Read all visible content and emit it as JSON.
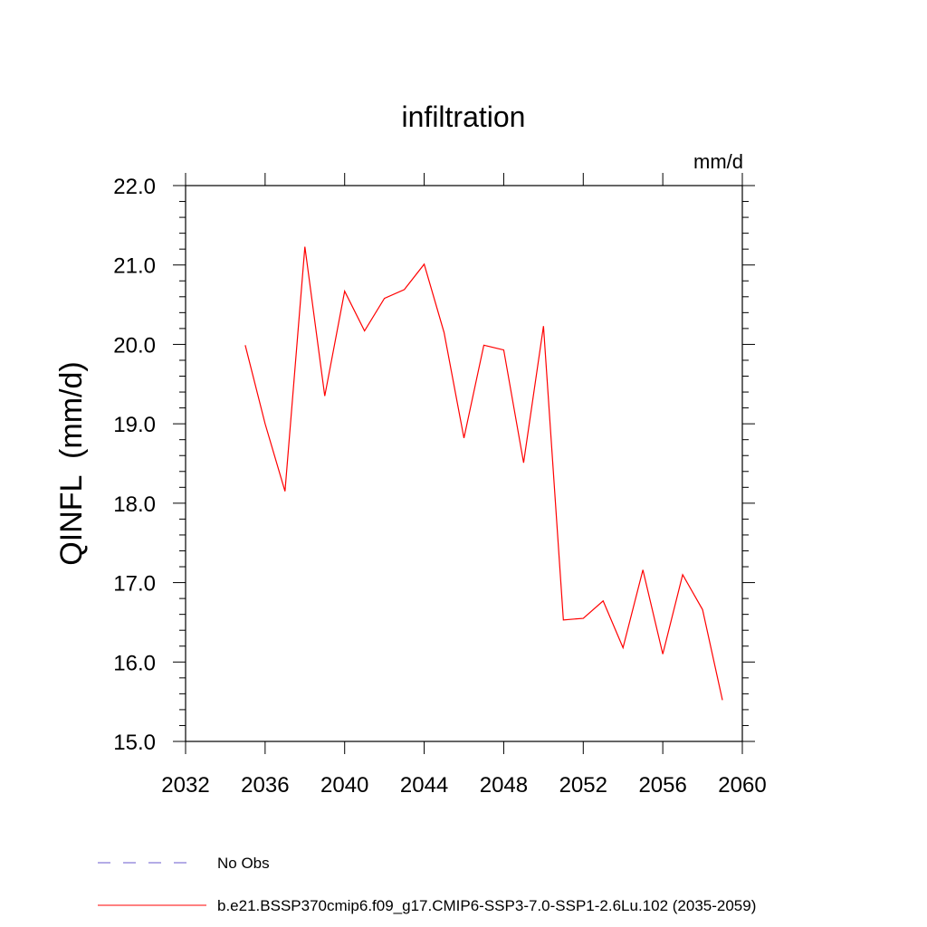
{
  "chart_data": {
    "type": "line",
    "title": "infiltration",
    "units_label": "mm/d",
    "ylabel": "QINFL  (mm/d)",
    "xlabel": "",
    "xlim": [
      2032,
      2060
    ],
    "ylim": [
      15.0,
      22.0
    ],
    "x_ticks": [
      "2032",
      "2036",
      "2040",
      "2044",
      "2048",
      "2052",
      "2056",
      "2060"
    ],
    "y_ticks": [
      "15.0",
      "16.0",
      "17.0",
      "18.0",
      "19.0",
      "20.0",
      "21.0",
      "22.0"
    ],
    "x": [
      2035,
      2036,
      2037,
      2038,
      2039,
      2040,
      2041,
      2042,
      2043,
      2044,
      2045,
      2046,
      2047,
      2048,
      2049,
      2050,
      2051,
      2052,
      2053,
      2054,
      2055,
      2056,
      2057,
      2058,
      2059
    ],
    "series": [
      {
        "name": "b.e21.BSSP370cmip6.f09_g17.CMIP6-SSP3-7.0-SSP1-2.6Lu.102 (2035-2059)",
        "color": "#ff0000",
        "values": [
          19.99,
          19.0,
          18.15,
          21.23,
          19.35,
          20.67,
          20.17,
          20.58,
          20.69,
          21.01,
          20.15,
          18.82,
          19.99,
          19.93,
          18.51,
          20.23,
          16.53,
          16.55,
          16.77,
          16.18,
          17.16,
          16.1,
          17.1,
          16.66,
          15.52
        ]
      }
    ],
    "legend": [
      {
        "label": "No Obs",
        "color": "#6a5acd",
        "style": "dashed"
      },
      {
        "label": "b.e21.BSSP370cmip6.f09_g17.CMIP6-SSP3-7.0-SSP1-2.6Lu.102 (2035-2059)",
        "color": "#ff0000",
        "style": "solid"
      }
    ],
    "legend_position": "bottom",
    "grid": false
  }
}
